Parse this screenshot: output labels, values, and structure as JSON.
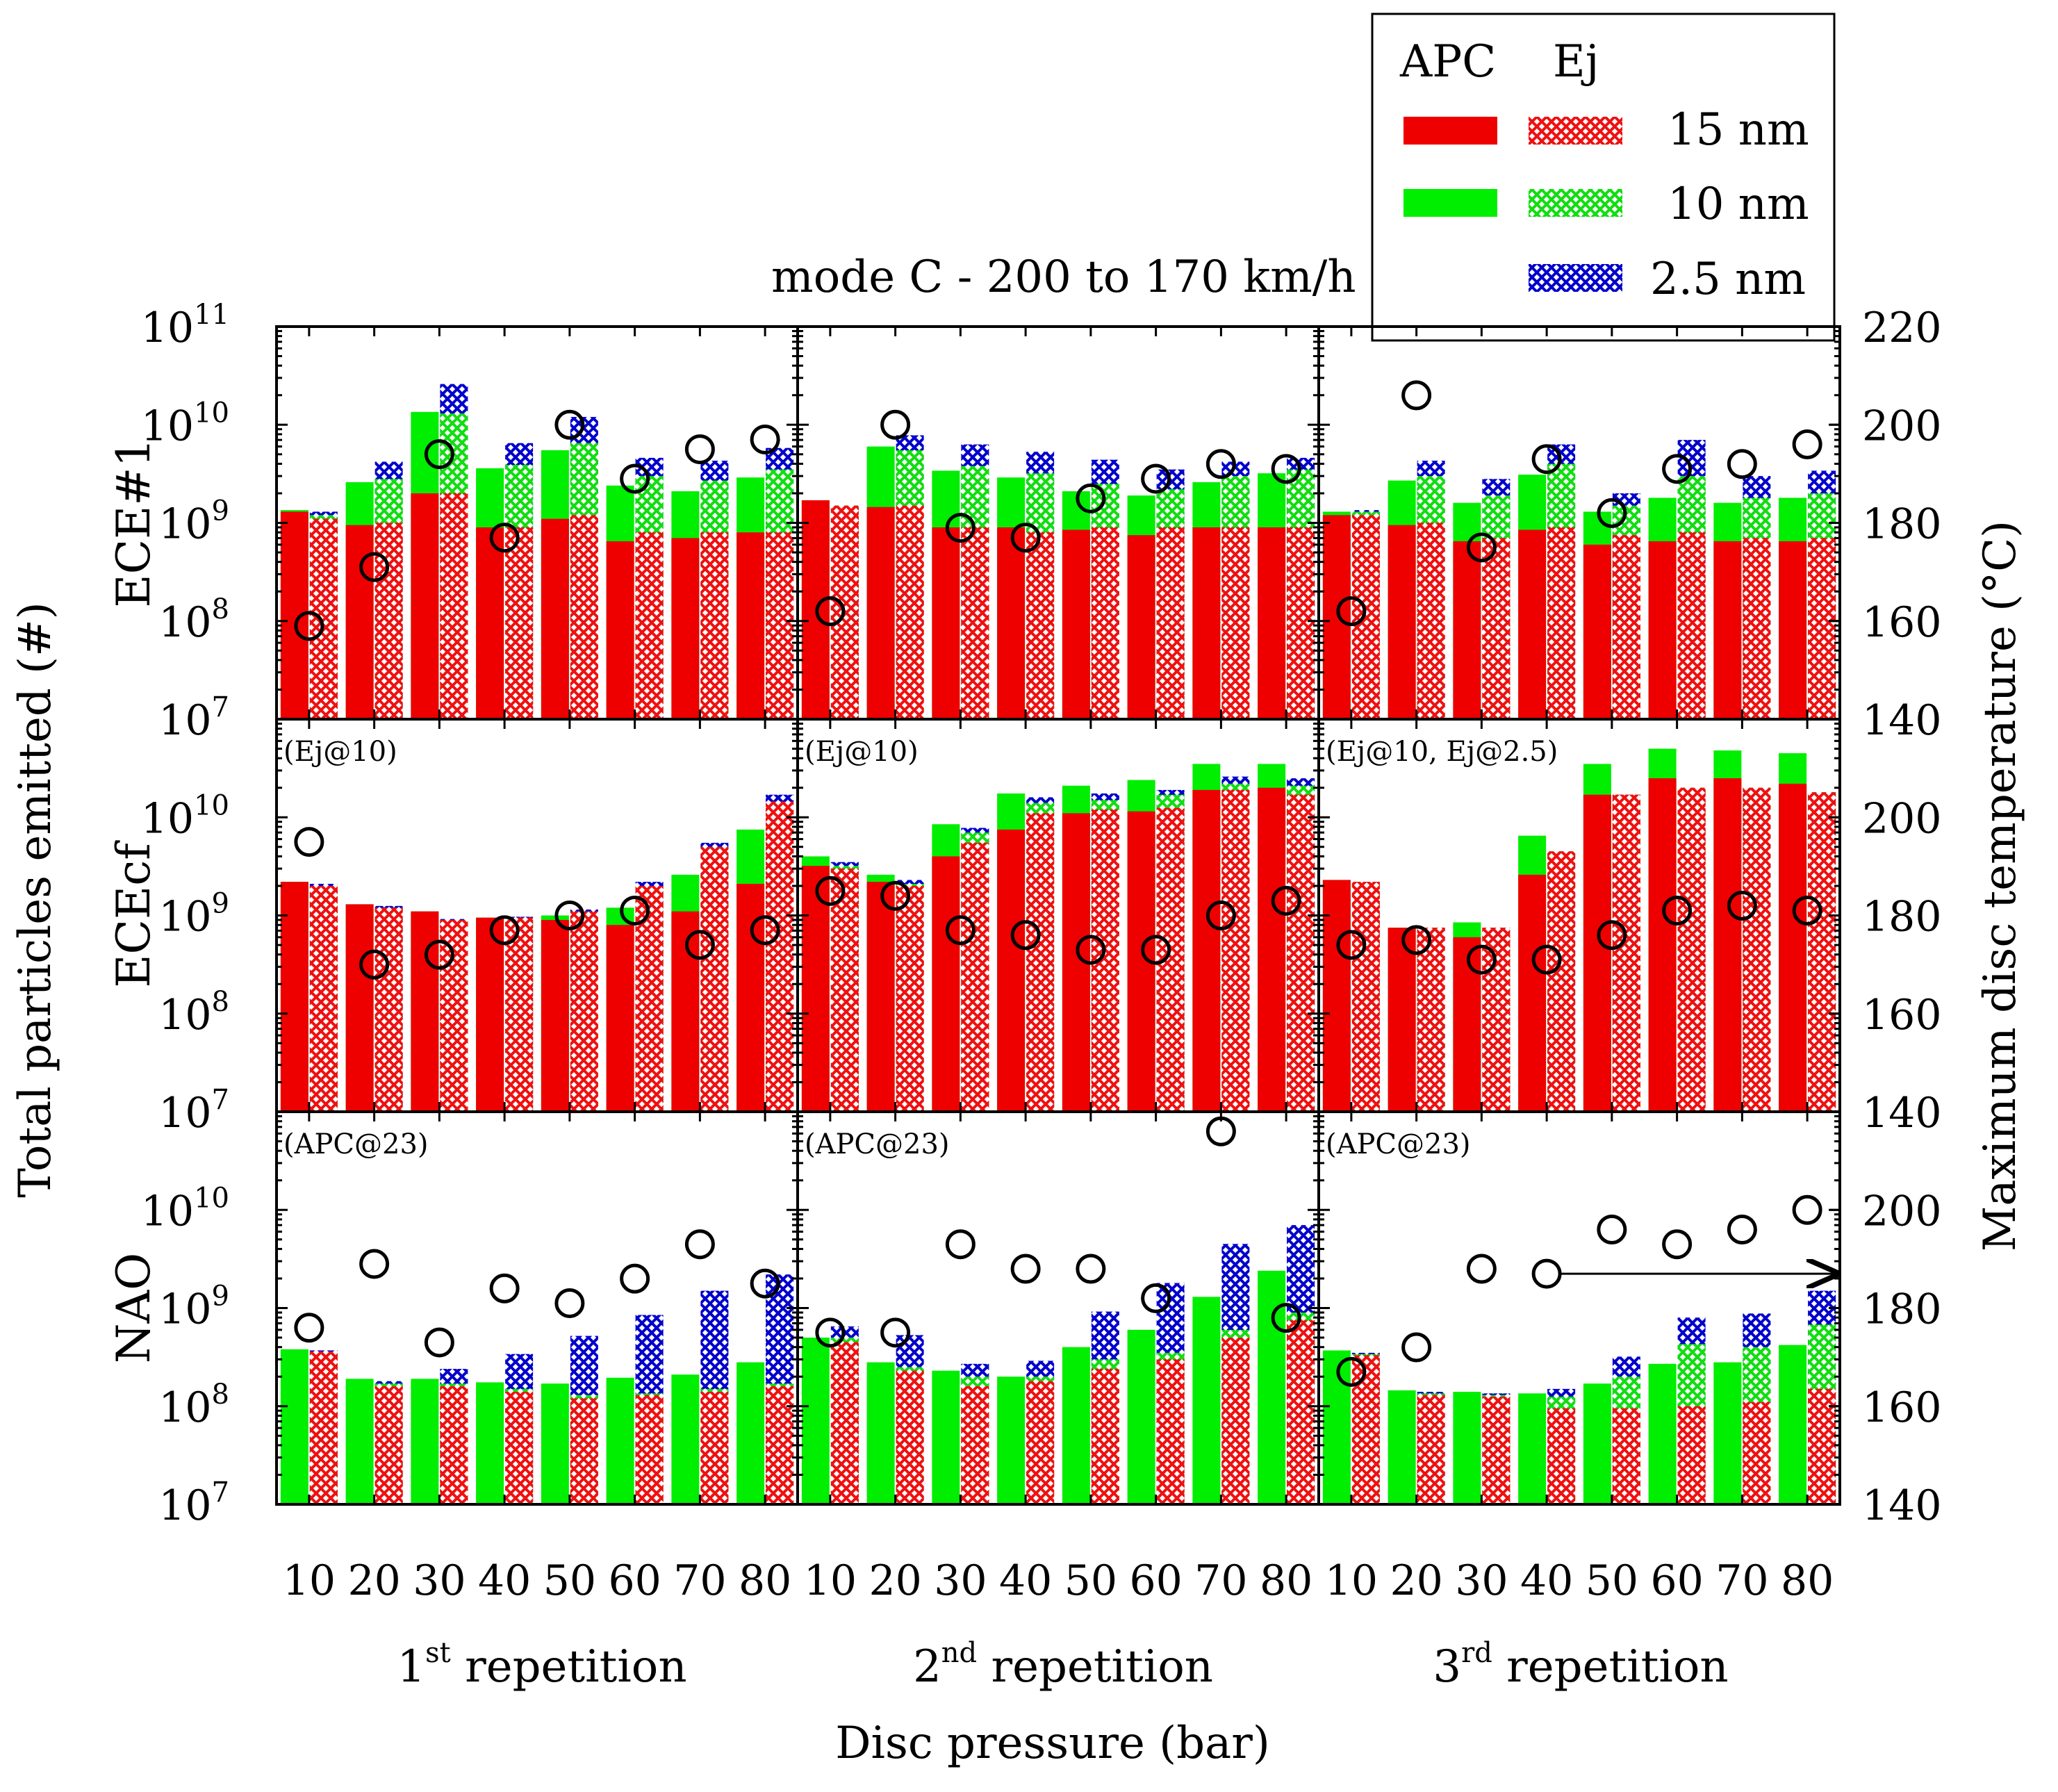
{
  "chart_data": {
    "type": "bar",
    "title": "mode C - 200 to 170 km/h",
    "xlabel": "Disc pressure (bar)",
    "ylabel": "Total particles emitted (#)",
    "y2label": "Maximum disc temperature (°C)",
    "yscale": "log",
    "ylim": [
      10000000,
      100000000000
    ],
    "y2lim": [
      140,
      220
    ],
    "y2ticks": [
      140,
      160,
      180,
      200,
      220
    ],
    "legend": {
      "placement": "top-right",
      "headers": [
        "APC",
        "Ej"
      ],
      "items": [
        {
          "label": "15 nm",
          "color": "#ee0000"
        },
        {
          "label": "10 nm",
          "color": "#00ee00"
        },
        {
          "label": "2.5 nm",
          "color": "#0000cc"
        }
      ]
    },
    "categories": [
      "10",
      "20",
      "30",
      "40",
      "50",
      "60",
      "70",
      "80"
    ],
    "repetitions": [
      {
        "label": "1",
        "sup": "st",
        "suffix": " repetition"
      },
      {
        "label": "2",
        "sup": "nd",
        "suffix": " repetition"
      },
      {
        "label": "3",
        "sup": "rd",
        "suffix": " repetition"
      }
    ],
    "rows": [
      {
        "name": "ECE#1",
        "notes": [
          "",
          "",
          ""
        ],
        "panels": [
          {
            "apc15": [
              1300000000.0,
              950000000.0,
              2000000000.0,
              900000000.0,
              1100000000.0,
              650000000.0,
              700000000.0,
              800000000.0
            ],
            "apc10": [
              1350000000.0,
              2600000000.0,
              13500000000.0,
              3600000000.0,
              5500000000.0,
              2400000000.0,
              2100000000.0,
              2900000000.0
            ],
            "ej15": [
              1100000000.0,
              1000000000.0,
              2000000000.0,
              900000000.0,
              1200000000.0,
              800000000.0,
              800000000.0,
              800000000.0
            ],
            "ej10": [
              1200000000.0,
              2800000000.0,
              13000000000.0,
              3900000000.0,
              6500000000.0,
              3000000000.0,
              2700000000.0,
              3500000000.0
            ],
            "ej25": [
              1300000000.0,
              4200000000.0,
              26000000000.0,
              6500000000.0,
              12000000000.0,
              4600000000.0,
              4300000000.0,
              5800000000.0
            ],
            "temp": [
              159,
              171,
              194,
              177,
              200,
              189,
              195,
              197
            ]
          },
          {
            "apc15": [
              1700000000.0,
              1450000000.0,
              900000000.0,
              900000000.0,
              850000000.0,
              750000000.0,
              900000000.0,
              900000000.0
            ],
            "apc10": [
              1700000000.0,
              6000000000.0,
              3400000000.0,
              2900000000.0,
              2100000000.0,
              1900000000.0,
              2600000000.0,
              3200000000.0
            ],
            "ej15": [
              1500000000.0,
              1500000000.0,
              900000000.0,
              800000000.0,
              900000000.0,
              900000000.0,
              900000000.0,
              900000000.0
            ],
            "ej10": [
              1500000000.0,
              5500000000.0,
              3800000000.0,
              3200000000.0,
              2500000000.0,
              2200000000.0,
              3000000000.0,
              3500000000.0
            ],
            "ej25": [
              1500000000.0,
              7800000000.0,
              6300000000.0,
              5300000000.0,
              4400000000.0,
              3500000000.0,
              4200000000.0,
              4600000000.0
            ],
            "temp": [
              162,
              200,
              179,
              177,
              185,
              189,
              192,
              191
            ]
          },
          {
            "apc15": [
              1200000000.0,
              950000000.0,
              650000000.0,
              850000000.0,
              600000000.0,
              650000000.0,
              650000000.0,
              650000000.0
            ],
            "apc10": [
              1300000000.0,
              2700000000.0,
              1600000000.0,
              3100000000.0,
              1300000000.0,
              1800000000.0,
              1600000000.0,
              1800000000.0
            ],
            "ej15": [
              1200000000.0,
              1000000000.0,
              700000000.0,
              900000000.0,
              750000000.0,
              800000000.0,
              700000000.0,
              700000000.0
            ],
            "ej10": [
              1300000000.0,
              3000000000.0,
              1900000000.0,
              4000000000.0,
              1500000000.0,
              3000000000.0,
              1800000000.0,
              2000000000.0
            ],
            "ej25": [
              1350000000.0,
              4300000000.0,
              2800000000.0,
              6300000000.0,
              2000000000.0,
              7000000000.0,
              3000000000.0,
              3400000000.0
            ],
            "temp": [
              162,
              206,
              175,
              193,
              182,
              191,
              192,
              196
            ]
          }
        ]
      },
      {
        "name": "ECEcf",
        "notes": [
          "(Ej@10)",
          "(Ej@10)",
          "(Ej@10, Ej@2.5)"
        ],
        "panels": [
          {
            "apc15": [
              2200000000.0,
              1300000000.0,
              1100000000.0,
              950000000.0,
              900000000.0,
              800000000.0,
              1100000000.0,
              2100000000.0
            ],
            "apc10": [
              2200000000.0,
              1300000000.0,
              1100000000.0,
              950000000.0,
              1000000000.0,
              1200000000.0,
              2600000000.0,
              7500000000.0
            ],
            "ej15": [
              2000000000.0,
              1200000000.0,
              900000000.0,
              950000000.0,
              1100000000.0,
              2000000000.0,
              5000000000.0,
              14500000000.0
            ],
            "ej10": [
              2000000000.0,
              1200000000.0,
              900000000.0,
              950000000.0,
              1100000000.0,
              2000000000.0,
              5000000000.0,
              14500000000.0
            ],
            "ej25": [
              2100000000.0,
              1250000000.0,
              920000000.0,
              970000000.0,
              1150000000.0,
              2200000000.0,
              5500000000.0,
              17000000000.0
            ],
            "temp": [
              195,
              170,
              172,
              177,
              180,
              181,
              174,
              177
            ]
          },
          {
            "apc15": [
              3200000000.0,
              2200000000.0,
              4000000000.0,
              7500000000.0,
              11000000000.0,
              11500000000.0,
              19000000000.0,
              20000000000.0
            ],
            "apc10": [
              4000000000.0,
              2600000000.0,
              8500000000.0,
              17500000000.0,
              21000000000.0,
              24000000000.0,
              35000000000.0,
              35000000000.0
            ],
            "ej15": [
              3000000000.0,
              2000000000.0,
              5500000000.0,
              11000000000.0,
              12000000000.0,
              12500000000.0,
              19000000000.0,
              17000000000.0
            ],
            "ej10": [
              3200000000.0,
              2100000000.0,
              7000000000.0,
              14000000000.0,
              15000000000.0,
              17000000000.0,
              22000000000.0,
              21000000000.0
            ],
            "ej25": [
              3500000000.0,
              2300000000.0,
              7800000000.0,
              16000000000.0,
              17500000000.0,
              19000000000.0,
              26000000000.0,
              25000000000.0
            ],
            "temp": [
              185,
              184,
              177,
              176,
              173,
              173,
              180,
              183
            ]
          },
          {
            "apc15": [
              2300000000.0,
              750000000.0,
              600000000.0,
              2600000000.0,
              17000000000.0,
              25000000000.0,
              25000000000.0,
              22000000000.0
            ],
            "apc10": [
              2300000000.0,
              750000000.0,
              850000000.0,
              6500000000.0,
              35000000000.0,
              50000000000.0,
              48000000000.0,
              45000000000.0
            ],
            "ej15": [
              2200000000.0,
              750000000.0,
              750000000.0,
              4500000000.0,
              17000000000.0,
              20000000000.0,
              20000000000.0,
              18000000000.0
            ],
            "ej10": [
              2200000000.0,
              750000000.0,
              750000000.0,
              4500000000.0,
              17000000000.0,
              20000000000.0,
              20000000000.0,
              18000000000.0
            ],
            "ej25": [
              2200000000.0,
              750000000.0,
              750000000.0,
              4500000000.0,
              17000000000.0,
              20000000000.0,
              20000000000.0,
              18000000000.0
            ],
            "temp": [
              174,
              175,
              171,
              171,
              176,
              181,
              182,
              181
            ]
          }
        ]
      },
      {
        "name": "NAO",
        "notes": [
          "(APC@23)",
          "(APC@23)",
          "(APC@23)"
        ],
        "panels": [
          {
            "apc15": [
              0,
              0,
              0,
              0,
              0,
              0,
              0,
              0
            ],
            "apc10": [
              380000000.0,
              190000000.0,
              190000000.0,
              175000000.0,
              170000000.0,
              195000000.0,
              210000000.0,
              280000000.0
            ],
            "ej15": [
              360000000.0,
              160000000.0,
              160000000.0,
              140000000.0,
              120000000.0,
              130000000.0,
              140000000.0,
              160000000.0
            ],
            "ej10": [
              360000000.0,
              170000000.0,
              170000000.0,
              150000000.0,
              130000000.0,
              135000000.0,
              150000000.0,
              170000000.0
            ],
            "ej25": [
              370000000.0,
              180000000.0,
              240000000.0,
              340000000.0,
              520000000.0,
              850000000.0,
              1500000000.0,
              2200000000.0
            ],
            "temp": [
              176,
              189,
              173,
              184,
              181,
              186,
              193,
              185
            ]
          },
          {
            "apc15": [
              0,
              0,
              0,
              0,
              0,
              0,
              0,
              0
            ],
            "apc10": [
              500000000.0,
              280000000.0,
              230000000.0,
              200000000.0,
              400000000.0,
              600000000.0,
              1300000000.0,
              2400000000.0
            ],
            "ej15": [
              450000000.0,
              230000000.0,
              160000000.0,
              180000000.0,
              240000000.0,
              300000000.0,
              500000000.0,
              750000000.0
            ],
            "ej10": [
              500000000.0,
              250000000.0,
              200000000.0,
              200000000.0,
              300000000.0,
              350000000.0,
              600000000.0,
              900000000.0
            ],
            "ej25": [
              650000000.0,
              530000000.0,
              270000000.0,
              290000000.0,
              920000000.0,
              1800000000.0,
              4500000000.0,
              7000000000.0
            ],
            "temp": [
              175,
              175,
              193,
              188,
              188,
              182,
              216,
              178
            ]
          },
          {
            "apc15": [
              0,
              0,
              0,
              0,
              0,
              0,
              0,
              0
            ],
            "apc10": [
              370000000.0,
              145000000.0,
              140000000.0,
              135000000.0,
              170000000.0,
              270000000.0,
              280000000.0,
              420000000.0
            ],
            "ej15": [
              330000000.0,
              130000000.0,
              125000000.0,
              95000000.0,
              95000000.0,
              100000000.0,
              110000000.0,
              150000000.0
            ],
            "ej10": [
              340000000.0,
              135000000.0,
              130000000.0,
              125000000.0,
              200000000.0,
              430000000.0,
              400000000.0,
              680000000.0
            ],
            "ej25": [
              350000000.0,
              140000000.0,
              135000000.0,
              150000000.0,
              320000000.0,
              800000000.0,
              880000000.0,
              1500000000.0
            ],
            "temp": [
              167,
              172,
              188,
              187,
              196,
              193,
              196,
              200
            ]
          }
        ]
      }
    ],
    "annotations": [
      {
        "row": 2,
        "panel": 2,
        "type": "arrow",
        "from_category": "40",
        "direction": "right-axis",
        "value": 187
      }
    ]
  }
}
